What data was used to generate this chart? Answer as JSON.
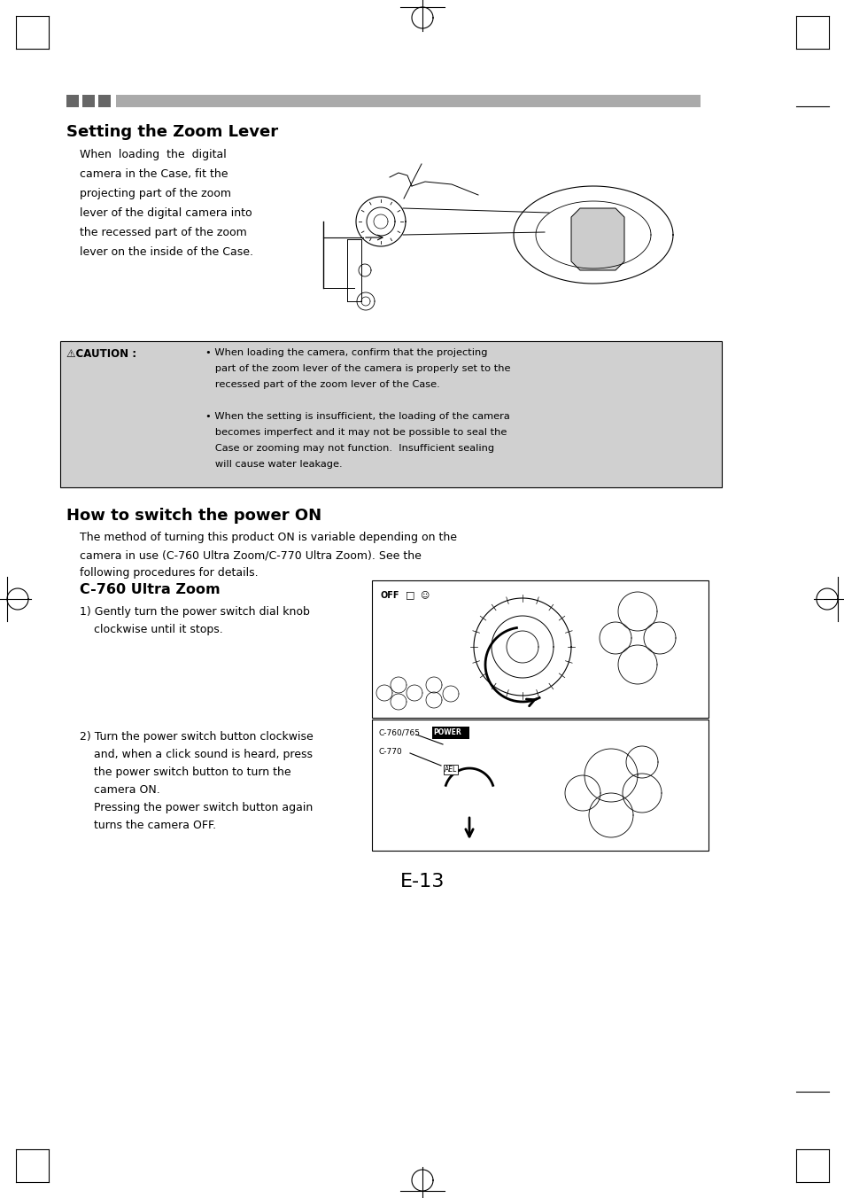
{
  "page_bg": "#ffffff",
  "page_width": 9.54,
  "page_height": 13.52,
  "dpi": 100,
  "header_squares_color": "#666666",
  "header_bar_color": "#aaaaaa",
  "section1_title": "Setting the Zoom Lever",
  "section1_body_lines": [
    "When  loading  the  digital",
    "camera in the Case, fit the",
    "projecting part of the zoom",
    "lever of the digital camera into",
    "the recessed part of the zoom",
    "lever on the inside of the Case."
  ],
  "caution_label": "⚠CAUTION :",
  "caution_line1": "• When loading the camera, confirm that the projecting",
  "caution_line2": "   part of the zoom lever of the camera is properly set to the",
  "caution_line3": "   recessed part of the zoom lever of the Case.",
  "caution_line4": "• When the setting is insufficient, the loading of the camera",
  "caution_line5": "   becomes imperfect and it may not be possible to seal the",
  "caution_line6": "   Case or zooming may not function.  Insufficient sealing",
  "caution_line7": "   will cause water leakage.",
  "section2_title": "How to switch the power ON",
  "section2_body_lines": [
    "The method of turning this product ON is variable depending on the",
    "camera in use (C-760 Ultra Zoom/C-770 Ultra Zoom). See the",
    "following procedures for details."
  ],
  "subsection_title": "C-760 Ultra Zoom",
  "step1_lines": [
    "1) Gently turn the power switch dial knob",
    "    clockwise until it stops."
  ],
  "step2_lines": [
    "2) Turn the power switch button clockwise",
    "    and, when a click sound is heard, press",
    "    the power switch button to turn the",
    "    camera ON.",
    "    Pressing the power switch button again",
    "    turns the camera OFF."
  ],
  "page_num": "E-13"
}
